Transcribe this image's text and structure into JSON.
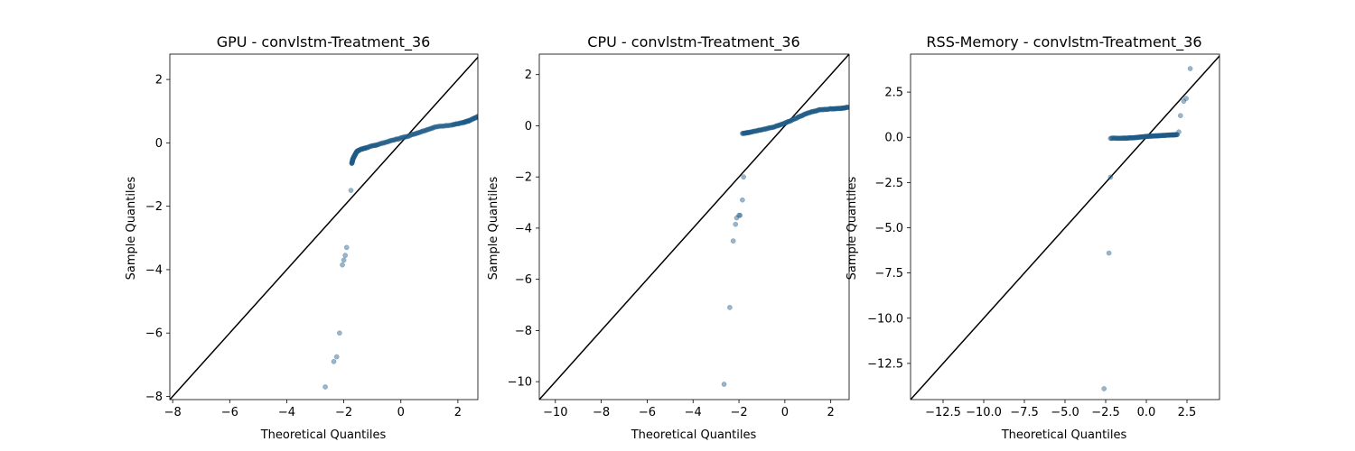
{
  "chart_data": [
    {
      "type": "scatter",
      "title": "GPU - convlstm-Treatment_36",
      "xlabel": "Theoretical Quantiles",
      "ylabel": "Sample Quantiles",
      "xlim": [
        -8.1,
        2.7
      ],
      "ylim": [
        -8.1,
        2.8
      ],
      "xticks": [
        -8,
        -6,
        -4,
        -2,
        0,
        2
      ],
      "yticks": [
        -8,
        -6,
        -4,
        -2,
        0,
        2
      ],
      "xtick_labels": [
        "−8",
        "−6",
        "−4",
        "−2",
        "0",
        "2"
      ],
      "ytick_labels": [
        "−8",
        "−6",
        "−4",
        "−2",
        "0",
        "2"
      ],
      "reference_line": "45-degree",
      "grid": false,
      "outliers": {
        "x": [
          -2.65,
          -2.35,
          -2.25,
          -2.15,
          -2.05,
          -2.0,
          -1.95,
          -1.9,
          -1.75
        ],
        "y": [
          -7.7,
          -6.9,
          -6.75,
          -6.0,
          -3.85,
          -3.7,
          -3.55,
          -3.3,
          -1.5
        ]
      },
      "curve": {
        "x": [
          -1.72,
          -1.68,
          -1.62,
          -1.55,
          -1.45,
          -1.2,
          -0.8,
          -0.3,
          0.2,
          0.7,
          1.2,
          1.8,
          2.2,
          2.4,
          2.7
        ],
        "y": [
          -0.65,
          -0.5,
          -0.4,
          -0.28,
          -0.22,
          -0.15,
          -0.05,
          0.08,
          0.2,
          0.35,
          0.5,
          0.57,
          0.64,
          0.7,
          0.83
        ]
      }
    },
    {
      "type": "scatter",
      "title": "CPU - convlstm-Treatment_36",
      "xlabel": "Theoretical Quantiles",
      "ylabel": "Sample Quantiles",
      "xlim": [
        -10.7,
        2.8
      ],
      "ylim": [
        -10.7,
        2.8
      ],
      "xticks": [
        -10,
        -8,
        -6,
        -4,
        -2,
        0,
        2
      ],
      "yticks": [
        -10,
        -8,
        -6,
        -4,
        -2,
        0,
        2
      ],
      "xtick_labels": [
        "−10",
        "−8",
        "−6",
        "−4",
        "−2",
        "0",
        "2"
      ],
      "ytick_labels": [
        "−10",
        "−8",
        "−6",
        "−4",
        "−2",
        "0",
        "2"
      ],
      "reference_line": "45-degree",
      "grid": false,
      "outliers": {
        "x": [
          -2.65,
          -2.4,
          -2.25,
          -2.15,
          -2.1,
          -2.0,
          -1.95,
          -1.85,
          -1.8
        ],
        "y": [
          -10.1,
          -7.1,
          -4.5,
          -3.85,
          -3.6,
          -3.5,
          -3.5,
          -2.9,
          -2.0
        ]
      },
      "curve": {
        "x": [
          -1.85,
          -1.5,
          -1.0,
          -0.5,
          0.0,
          0.5,
          1.0,
          1.5,
          2.0,
          2.4,
          2.75
        ],
        "y": [
          -0.3,
          -0.25,
          -0.15,
          -0.05,
          0.1,
          0.3,
          0.5,
          0.62,
          0.66,
          0.68,
          0.72
        ]
      }
    },
    {
      "type": "scatter",
      "title": "RSS-Memory - convlstm-Treatment_36",
      "xlabel": "Theoretical Quantiles",
      "ylabel": "Sample Quantiles",
      "xlim": [
        -14.5,
        4.5
      ],
      "ylim": [
        -14.5,
        4.6
      ],
      "xticks": [
        -12.5,
        -10.0,
        -7.5,
        -5.0,
        -2.5,
        0.0,
        2.5
      ],
      "yticks": [
        -12.5,
        -10.0,
        -7.5,
        -5.0,
        -2.5,
        0.0,
        2.5
      ],
      "xtick_labels": [
        "−12.5",
        "−10.0",
        "−7.5",
        "−5.0",
        "−2.5",
        "0.0",
        "2.5"
      ],
      "ytick_labels": [
        "−12.5",
        "−10.0",
        "−7.5",
        "−5.0",
        "−2.5",
        "0.0",
        "2.5"
      ],
      "reference_line": "45-degree",
      "grid": false,
      "outliers": {
        "x": [
          -2.6,
          -2.3,
          -2.2,
          2.0,
          2.1,
          2.3,
          2.45,
          2.7
        ],
        "y": [
          -13.9,
          -6.4,
          -2.2,
          0.3,
          1.2,
          2.0,
          2.15,
          3.8
        ]
      },
      "curve": {
        "x": [
          -2.2,
          -1.5,
          -1.0,
          -0.5,
          0.0,
          0.5,
          1.0,
          1.5,
          1.9
        ],
        "y": [
          -0.05,
          -0.05,
          -0.03,
          0.0,
          0.05,
          0.08,
          0.1,
          0.13,
          0.15
        ]
      }
    }
  ]
}
